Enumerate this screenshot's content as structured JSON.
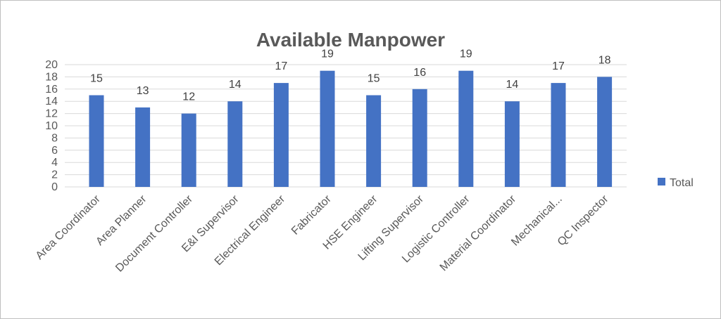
{
  "chart_data": {
    "type": "bar",
    "title": "Available Manpower",
    "xlabel": "",
    "ylabel": "",
    "ylim": [
      0,
      20
    ],
    "yticks": [
      0,
      2,
      4,
      6,
      8,
      10,
      12,
      14,
      16,
      18,
      20
    ],
    "grid": true,
    "legend_position": "right",
    "categories": [
      "Area Coordinator",
      "Area Planner",
      "Document Controller",
      "E&I Supervisor",
      "Electrical Engineer",
      "Fabricator",
      "HSE Engineer",
      "Lifting Supervisor",
      "Logistic Controller",
      "Material Coordinator",
      "Mechanical...",
      "QC Inspector"
    ],
    "series": [
      {
        "name": "Total",
        "color": "#4472c4",
        "values": [
          15,
          13,
          12,
          14,
          17,
          19,
          15,
          16,
          19,
          14,
          17,
          18
        ]
      }
    ]
  }
}
